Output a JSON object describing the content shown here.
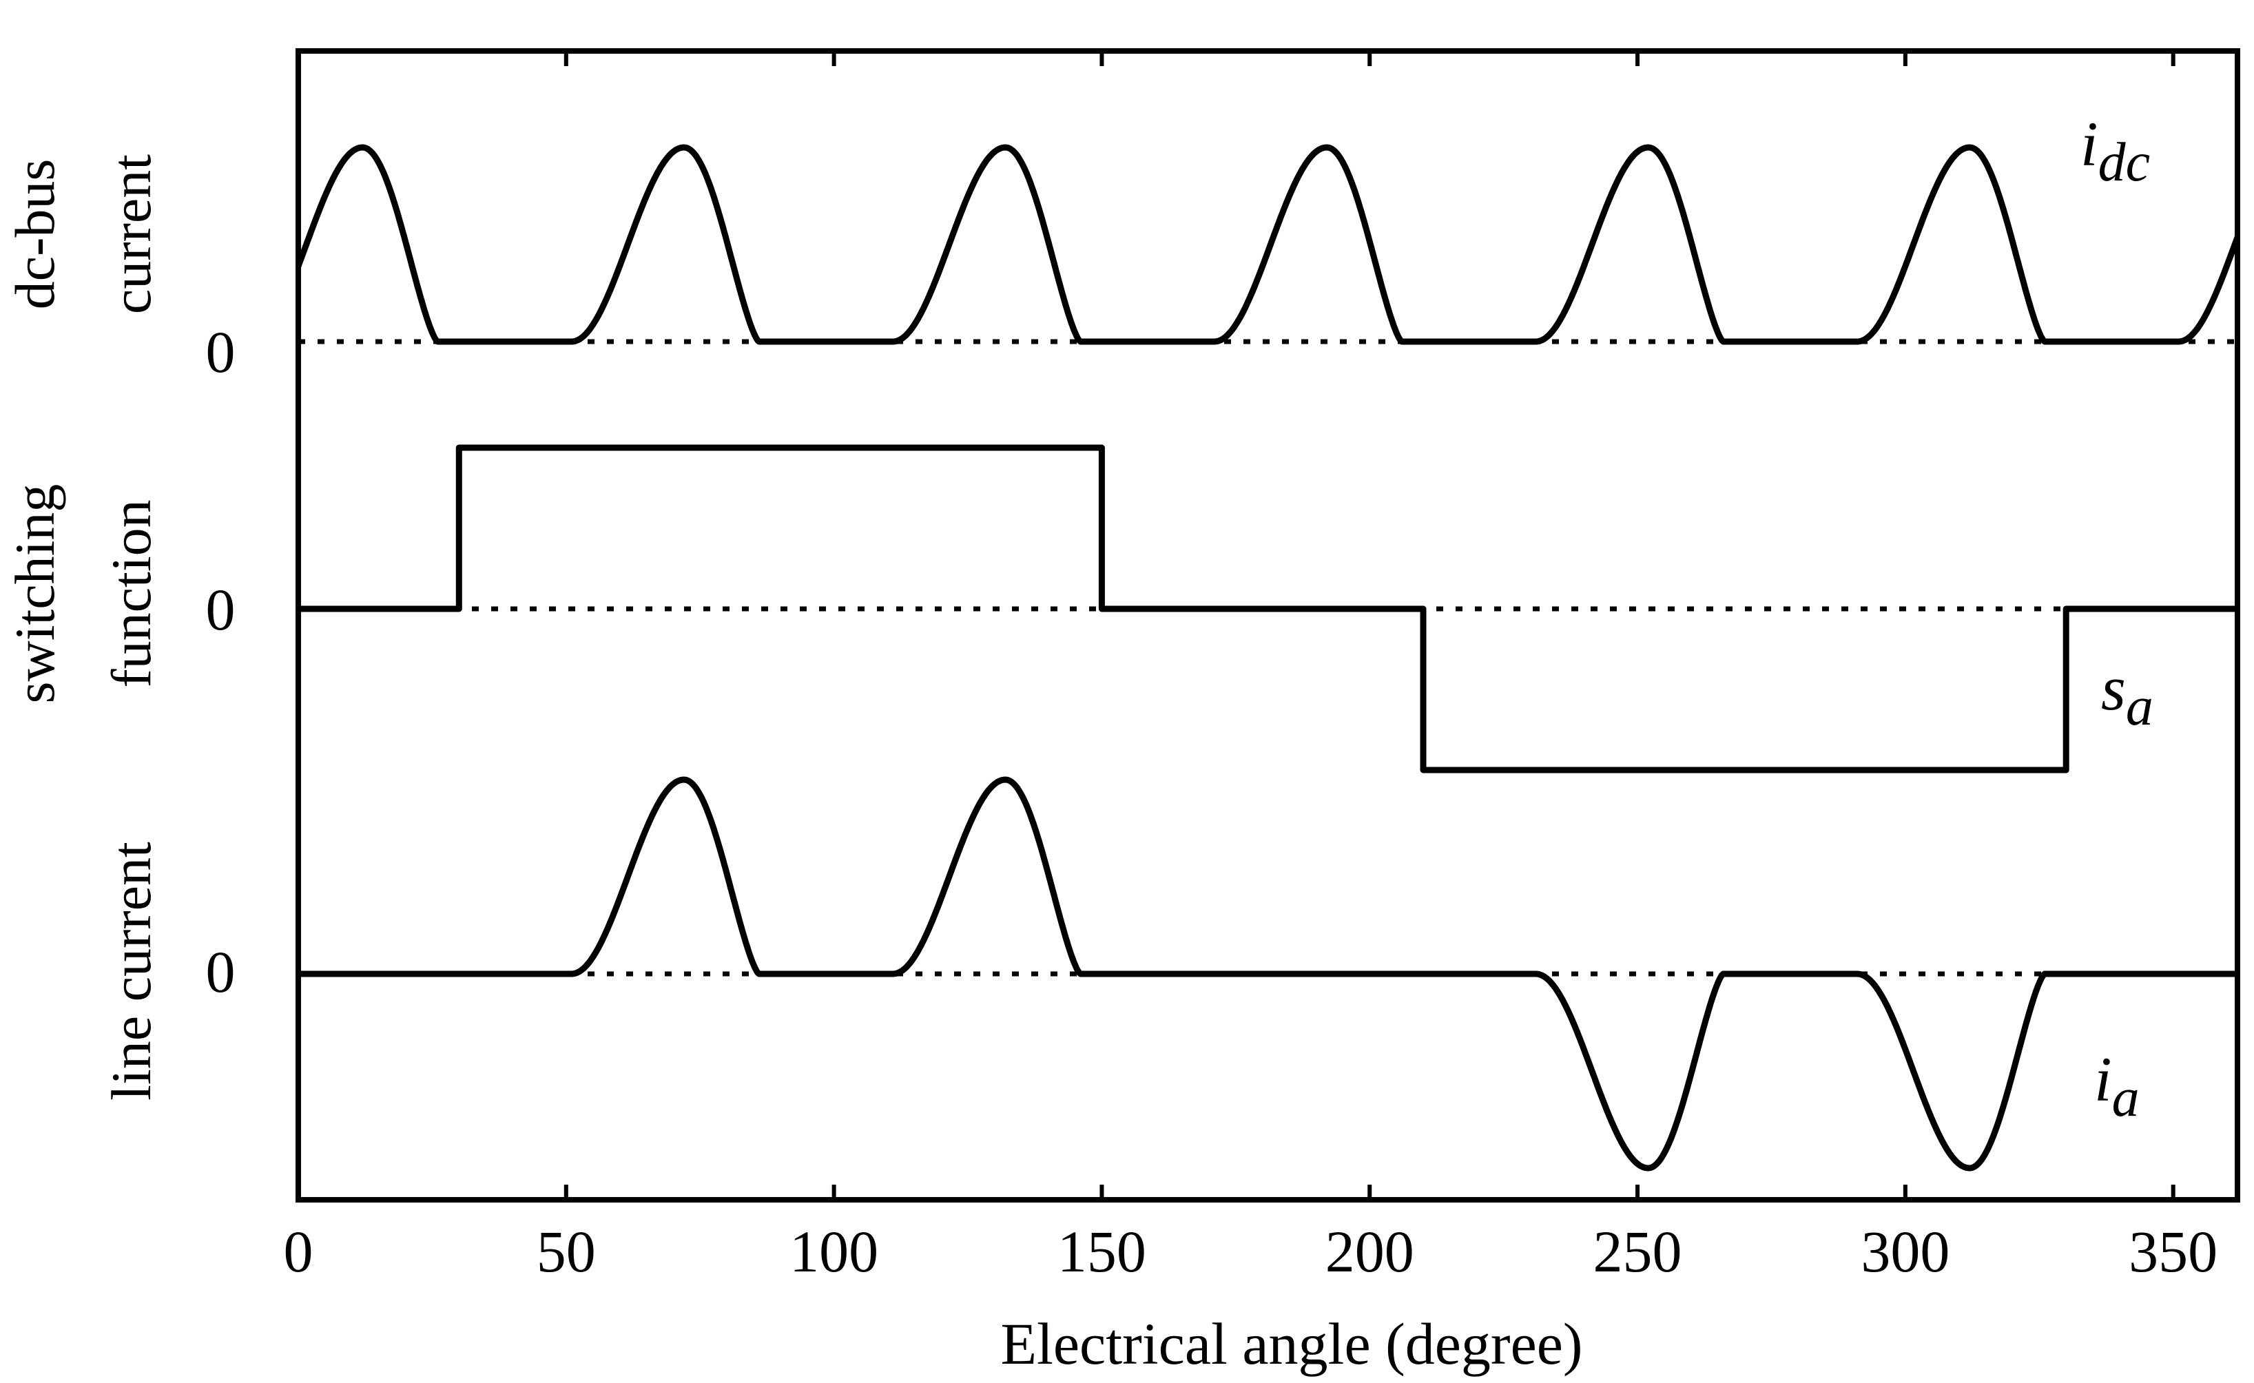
{
  "chart_data": {
    "type": "line",
    "xlabel": "Electrical angle (degree)",
    "xlim": [
      0,
      362
    ],
    "xticks": [
      0,
      50,
      100,
      150,
      200,
      250,
      300,
      350
    ],
    "grid": false,
    "panels": [
      {
        "id": "dc",
        "ylabel": [
          "dc-bus",
          "current"
        ],
        "zero_label": "0",
        "series": [
          {
            "name": "i",
            "subscript": "dc",
            "description": "positive humps of height ~1, rising from zero at ~51 + 60k deg, peaking at ~72 + 60k deg, falling to zero at ~86 + 60k deg",
            "period_deg": 60,
            "rise_start_deg": 51,
            "peak_deg": 72,
            "fall_end_deg": 86,
            "peak_value": 1
          }
        ]
      },
      {
        "id": "sw",
        "ylabel": [
          "switching",
          "function"
        ],
        "zero_label": "0",
        "series": [
          {
            "name": "s",
            "subscript": "a",
            "type": "step",
            "points": [
              [
                0,
                0
              ],
              [
                30,
                0
              ],
              [
                30,
                1
              ],
              [
                150,
                1
              ],
              [
                150,
                0
              ],
              [
                210,
                0
              ],
              [
                210,
                -1
              ],
              [
                330,
                -1
              ],
              [
                330,
                0
              ],
              [
                362,
                0
              ]
            ]
          }
        ]
      },
      {
        "id": "line",
        "ylabel": [
          "line current"
        ],
        "zero_label": "0",
        "series": [
          {
            "name": "i",
            "subscript": "a",
            "description": "i_dc gated by s_a: positive humps at 72 and 132 deg, negative humps at 252 and 312 deg",
            "positive_peaks_deg": [
              72,
              132
            ],
            "negative_peaks_deg": [
              252,
              312
            ],
            "peak_value": 1
          }
        ]
      }
    ]
  }
}
